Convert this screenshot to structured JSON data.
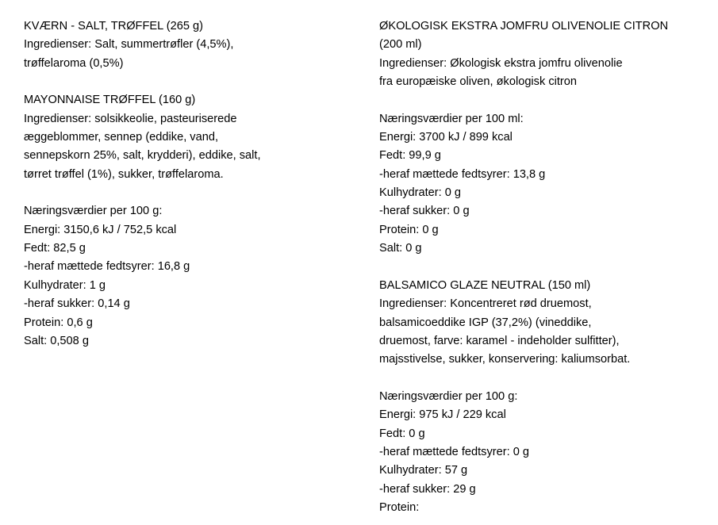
{
  "left_column": [
    {
      "title": "KVÆRN - SALT, TRØFFEL (265 g)",
      "lines": [
        "Ingredienser: Salt, summertrøfler (4,5%),",
        "trøffelaroma (0,5%)"
      ]
    },
    {
      "title": "MAYONNAISE TRØFFEL (160 g)",
      "lines": [
        "Ingredienser: solsikkeolie, pasteuriserede",
        "æggeblommer, sennep (eddike, vand,",
        "sennepskorn 25%, salt, krydderi), eddike, salt,",
        "tørret trøffel (1%), sukker, trøffelaroma."
      ]
    },
    {
      "title": "Næringsværdier per 100 g:",
      "lines": [
        "Energi: 3150,6 kJ / 752,5 kcal",
        "Fedt: 82,5 g",
        "-heraf mættede fedtsyrer: 16,8 g",
        "Kulhydrater: 1 g",
        "-heraf sukker: 0,14 g",
        "Protein: 0,6 g",
        "Salt: 0,508 g"
      ]
    }
  ],
  "right_column": [
    {
      "title": "ØKOLOGISK EKSTRA JOMFRU OLIVENOLIE CITRON",
      "lines": [
        "(200 ml)",
        "Ingredienser: Økologisk ekstra jomfru olivenolie",
        "fra europæiske oliven, økologisk citron"
      ]
    },
    {
      "title": "Næringsværdier per 100 ml:",
      "lines": [
        "Energi: 3700 kJ / 899 kcal",
        "Fedt: 99,9 g",
        "-heraf mættede fedtsyrer: 13,8 g",
        "Kulhydrater: 0 g",
        "-heraf sukker: 0 g",
        "Protein: 0 g",
        "Salt: 0 g"
      ]
    },
    {
      "title": "BALSAMICO GLAZE NEUTRAL (150 ml)",
      "lines": [
        "Ingredienser: Koncentreret rød druemost,",
        "balsamicoeddike IGP (37,2%) (vineddike,",
        "druemost, farve: karamel - indeholder sulfitter),",
        "majsstivelse, sukker, konservering: kaliumsorbat."
      ]
    },
    {
      "title": "Næringsværdier per 100 g:",
      "lines": [
        "Energi: 975 kJ / 229 kcal",
        "Fedt: 0 g",
        "-heraf mættede fedtsyrer: 0 g",
        "Kulhydrater: 57 g",
        "-heraf sukker: 29 g",
        "Protein:"
      ]
    }
  ]
}
